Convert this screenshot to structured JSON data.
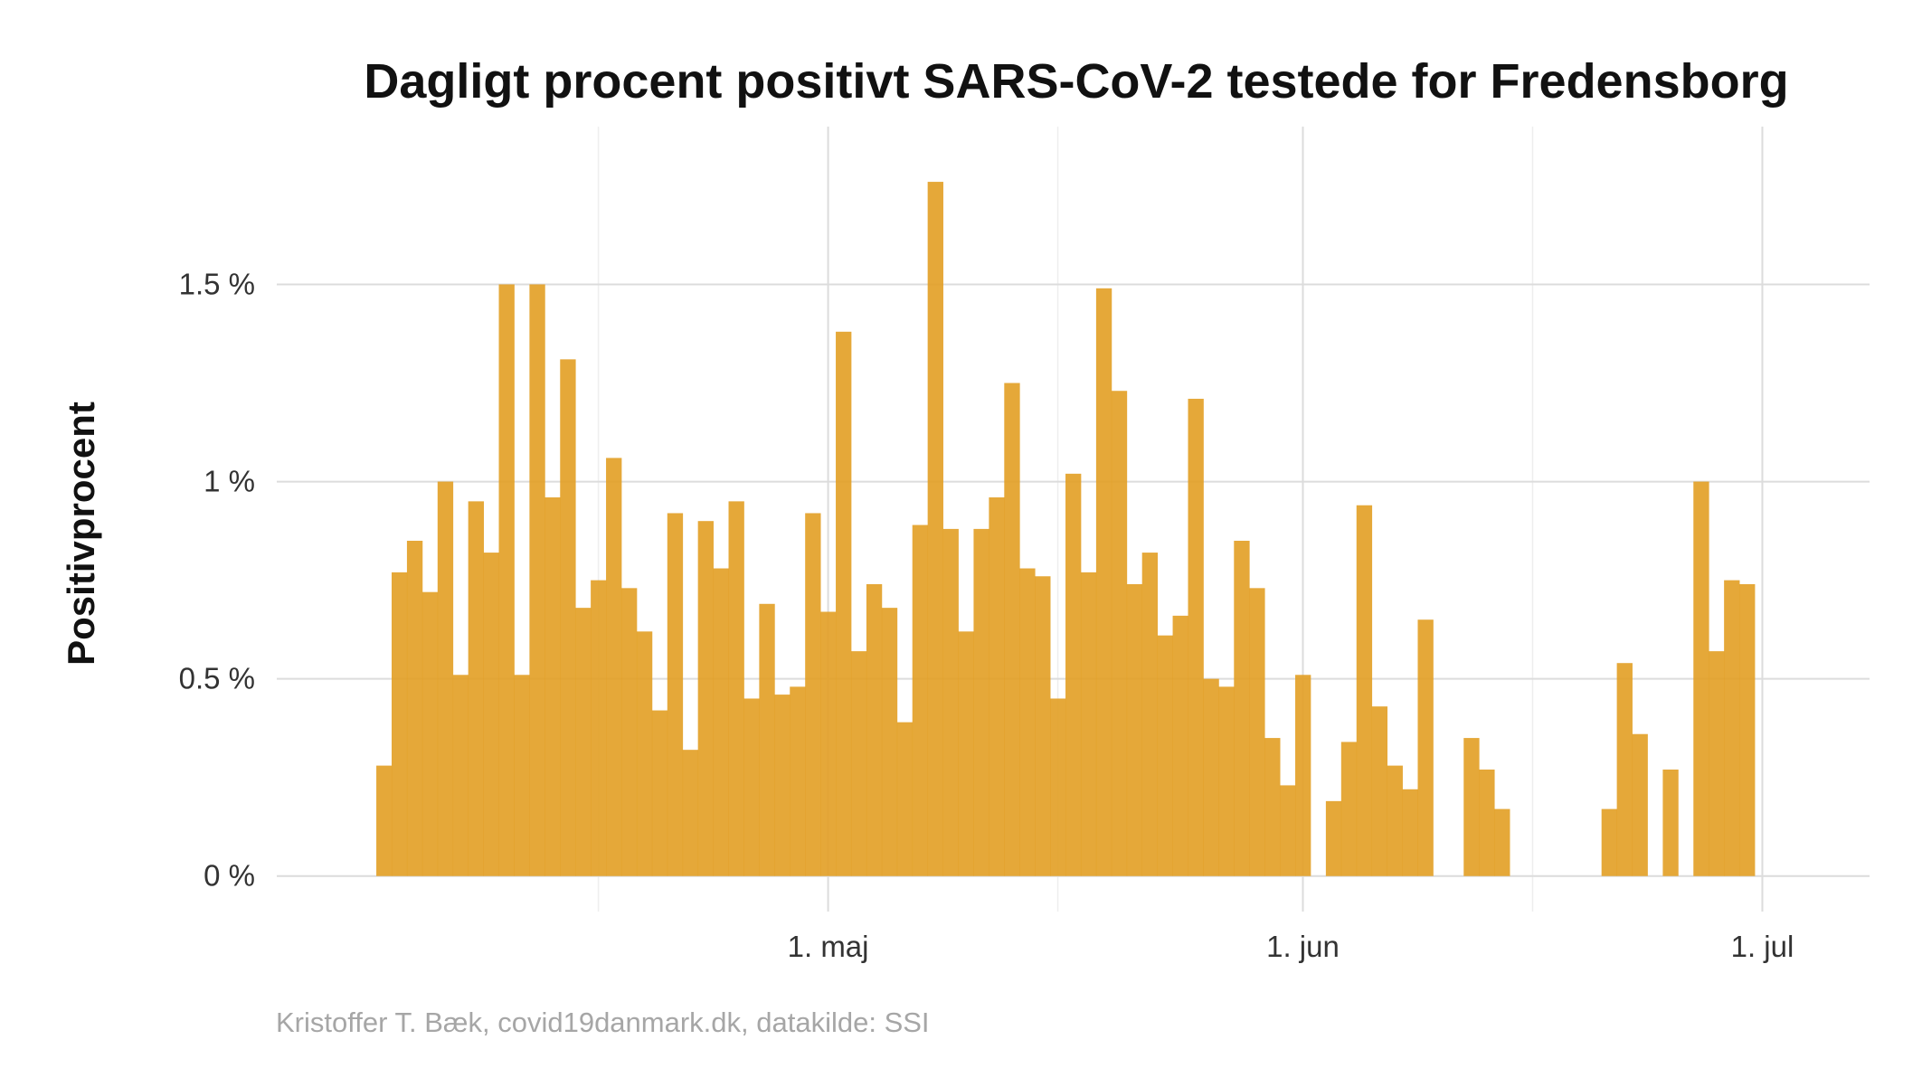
{
  "chart_data": {
    "type": "bar",
    "title": "Dagligt procent positivt SARS-CoV-2 testede for Fredensborg",
    "ylabel": "Positivprocent",
    "xlabel": "",
    "caption": "Kristoffer T. Bæk, covid19danmark.dk, datakilde: SSI",
    "bar_color": "#E29E23",
    "start_date": "2021-04-02",
    "values": [
      0.28,
      0.77,
      0.85,
      0.72,
      1.0,
      0.51,
      0.95,
      0.82,
      1.5,
      0.51,
      1.5,
      0.96,
      1.31,
      0.68,
      0.75,
      1.06,
      0.73,
      0.62,
      0.42,
      0.92,
      0.32,
      0.9,
      0.78,
      0.95,
      0.45,
      0.69,
      0.46,
      0.48,
      0.92,
      0.67,
      1.38,
      0.57,
      0.74,
      0.68,
      0.39,
      0.89,
      1.76,
      0.88,
      0.62,
      0.88,
      0.96,
      1.25,
      0.78,
      0.76,
      0.45,
      1.02,
      0.77,
      1.49,
      1.23,
      0.74,
      0.82,
      0.61,
      0.66,
      1.21,
      0.5,
      0.48,
      0.85,
      0.73,
      0.35,
      0.23,
      0.51,
      0.0,
      0.19,
      0.34,
      0.94,
      0.43,
      0.28,
      0.22,
      0.65,
      0.0,
      0.0,
      0.35,
      0.27,
      0.17,
      0.0,
      0.0,
      0.0,
      0.0,
      0.0,
      0.0,
      0.17,
      0.54,
      0.36,
      0.0,
      0.27,
      0.0,
      1.0,
      0.57,
      0.75,
      0.74
    ],
    "y_ticks": [
      {
        "value": 0,
        "label": "0 %"
      },
      {
        "value": 0.5,
        "label": "0.5 %"
      },
      {
        "value": 1.0,
        "label": "1 %"
      },
      {
        "value": 1.5,
        "label": "1.5 %"
      }
    ],
    "x_ticks": [
      {
        "date": "2021-05-01",
        "label": "1. maj"
      },
      {
        "date": "2021-06-01",
        "label": "1. jun"
      },
      {
        "date": "2021-07-01",
        "label": "1. jul"
      }
    ],
    "x_minor_gridlines": [
      "2021-04-16",
      "2021-05-16",
      "2021-06-16"
    ],
    "xlim": [
      "2021-03-26",
      "2021-07-08"
    ],
    "ylim": [
      -0.09,
      1.9
    ],
    "grid": true
  }
}
